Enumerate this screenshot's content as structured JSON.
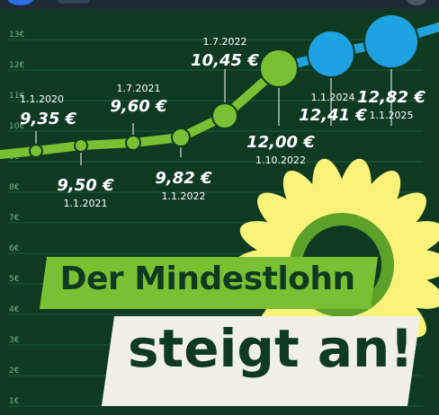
{
  "chart_data": {
    "type": "line",
    "title": "",
    "xlabel": "",
    "ylabel": "",
    "ylim": [
      0,
      13
    ],
    "y_ticks": [
      "1€",
      "2€",
      "3€",
      "4€",
      "5€",
      "6€",
      "7€",
      "8€",
      "9€",
      "10€",
      "11€",
      "12€",
      "13€"
    ],
    "points": [
      {
        "date": "1.1.2020",
        "value": 9.35,
        "label": "9,35 €",
        "color": "#7bc032"
      },
      {
        "date": "1.1.2021",
        "value": 9.5,
        "label": "9,50 €",
        "color": "#7bc032"
      },
      {
        "date": "1.7.2021",
        "value": 9.6,
        "label": "9,60 €",
        "color": "#7bc032"
      },
      {
        "date": "1.1.2022",
        "value": 9.82,
        "label": "9,82 €",
        "color": "#7bc032"
      },
      {
        "date": "1.7.2022",
        "value": 10.45,
        "label": "10,45 €",
        "color": "#7bc032"
      },
      {
        "date": "1.10.2022",
        "value": 12.0,
        "label": "12,00 €",
        "color": "#7bc032"
      },
      {
        "date": "1.1.2024",
        "value": 12.41,
        "label": "12,41 €",
        "color": "#1fa3e0"
      },
      {
        "date": "1.1.2025",
        "value": 12.82,
        "label": "12,82 €",
        "color": "#1fa3e0"
      }
    ],
    "grid": true,
    "line_color": "#7bc032"
  },
  "banner": {
    "line1": "Der Mindestlohn",
    "line2": "steigt an!"
  },
  "colors": {
    "background": "#0f3a22",
    "accent_green": "#7bc032",
    "accent_blue": "#1fa3e0",
    "sunflower": "#fbf27a",
    "banner_light": "#f0f0e6"
  }
}
